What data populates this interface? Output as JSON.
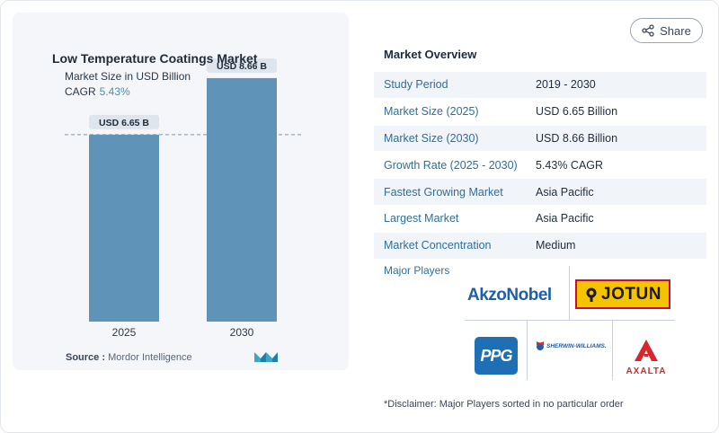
{
  "chart_data": {
    "type": "bar",
    "title": "Low Temperature Coatings Market",
    "subtitle": "Market Size in USD Billion",
    "cagr_label": "CAGR",
    "cagr_value": "5.43%",
    "categories": [
      "2025",
      "2030"
    ],
    "values": [
      6.65,
      8.66
    ],
    "data_labels": [
      "USD 6.65 B",
      "USD 8.66 B"
    ],
    "ylim": [
      0,
      10
    ],
    "xlabel": "",
    "ylabel": "",
    "reference_line_value": 6.65,
    "bar_color": "#5f94b8"
  },
  "source": {
    "label": "Source :",
    "name": "Mordor Intelligence"
  },
  "share": {
    "label": "Share",
    "icon": "share-icon"
  },
  "overview": {
    "title": "Market Overview",
    "rows": [
      {
        "label": "Study Period",
        "value": "2019 - 2030"
      },
      {
        "label": "Market Size (2025)",
        "value": "USD 6.65 Billion"
      },
      {
        "label": "Market Size (2030)",
        "value": "USD 8.66 Billion"
      },
      {
        "label": "Growth Rate (2025 - 2030)",
        "value": "5.43% CAGR"
      },
      {
        "label": "Fastest Growing Market",
        "value": "Asia Pacific"
      },
      {
        "label": "Largest Market",
        "value": "Asia Pacific"
      },
      {
        "label": "Market Concentration",
        "value": "Medium"
      }
    ]
  },
  "players": {
    "title": "Major Players",
    "logos": [
      "AkzoNobel",
      "JOTUN",
      "PPG",
      "SHERWIN-WILLIAMS.",
      "AXALTA"
    ]
  },
  "disclaimer": "*Disclaimer: Major Players sorted in no particular order",
  "colors": {
    "accent": "#2e6f9b",
    "bar": "#5f94b8",
    "akzo": "#1f5ea8",
    "jotun_bg": "#f4c400",
    "ppg": "#1f6fb5",
    "axalta": "#d7262d"
  }
}
